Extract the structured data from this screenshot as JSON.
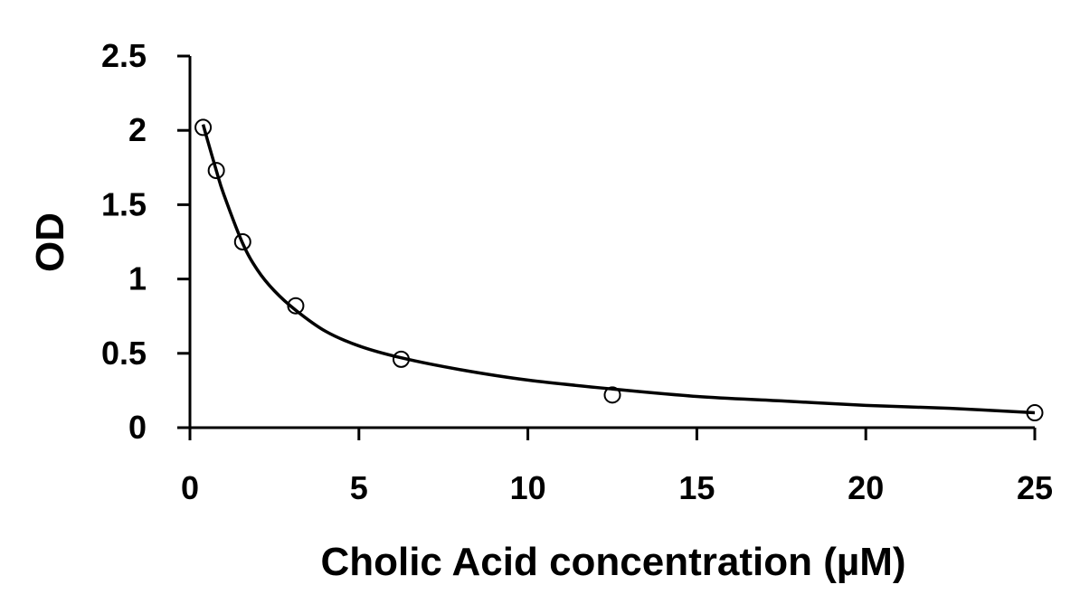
{
  "chart_data": {
    "type": "scatter",
    "title": "",
    "xlabel": "Cholic Acid concentration (µM)",
    "ylabel": "OD",
    "xlim": [
      0,
      25
    ],
    "ylim": [
      0,
      2.5
    ],
    "x_ticks": [
      "0",
      "5",
      "10",
      "15",
      "20",
      "25"
    ],
    "y_ticks": [
      "0",
      "0.5",
      "1",
      "1.5",
      "2",
      "2.5"
    ],
    "grid": false,
    "legend": "none",
    "series": [
      {
        "name": "",
        "marker": "open-circle",
        "x": [
          0.39,
          0.78,
          1.56,
          3.13,
          6.25,
          12.5,
          25
        ],
        "y": [
          2.02,
          1.73,
          1.25,
          0.82,
          0.46,
          0.22,
          0.1
        ]
      }
    ],
    "fit_curve": {
      "style": "solid",
      "x": [
        0.39,
        0.5,
        0.78,
        1.0,
        1.56,
        2.0,
        2.5,
        3.13,
        4.0,
        5.0,
        6.25,
        8.0,
        10.0,
        12.5,
        15.0,
        17.5,
        20.0,
        22.5,
        25.0
      ],
      "y": [
        2.04,
        1.95,
        1.73,
        1.57,
        1.24,
        1.06,
        0.92,
        0.79,
        0.65,
        0.55,
        0.47,
        0.39,
        0.32,
        0.26,
        0.21,
        0.18,
        0.15,
        0.13,
        0.1
      ]
    },
    "colors": {
      "axis": "#000000",
      "marker": "#000000",
      "curve": "#000000"
    }
  }
}
